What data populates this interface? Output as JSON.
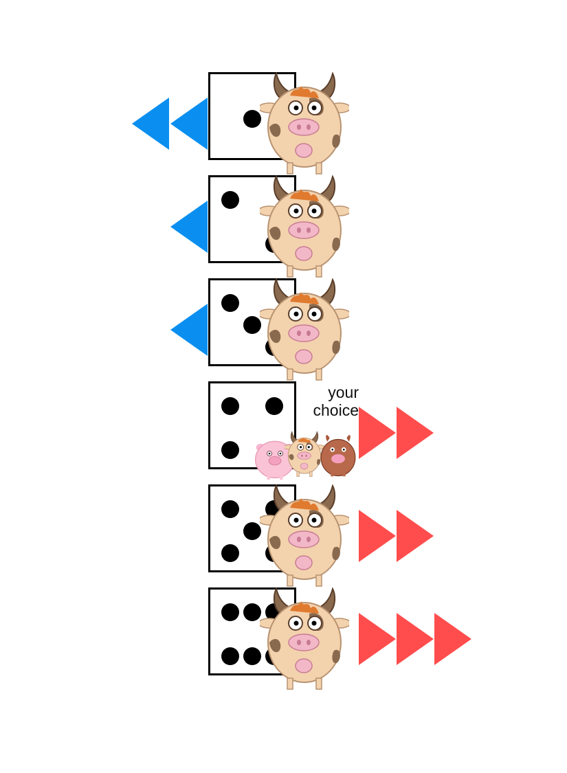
{
  "board": {
    "rows": [
      {
        "die_face": 1,
        "direction": "back",
        "steps": 2,
        "animal": "cow-icon"
      },
      {
        "die_face": 2,
        "direction": "back",
        "steps": 1,
        "animal": "cow-icon"
      },
      {
        "die_face": 3,
        "direction": "back",
        "steps": 1,
        "animal": "cow-icon"
      },
      {
        "die_face": 4,
        "direction": "forward",
        "steps": 2,
        "animal": "choice-of-animals"
      },
      {
        "die_face": 5,
        "direction": "forward",
        "steps": 2,
        "animal": "cow-icon"
      },
      {
        "die_face": 6,
        "direction": "forward",
        "steps": 3,
        "animal": "cow-icon"
      }
    ],
    "choice_label_line1": "your",
    "choice_label_line2": "choice",
    "choice_animals": [
      "pig-icon",
      "cow-icon",
      "horse-icon"
    ]
  },
  "colors": {
    "back_arrow": "#0a8ff0",
    "forward_arrow": "#ff4d4d",
    "pip": "#000000"
  }
}
